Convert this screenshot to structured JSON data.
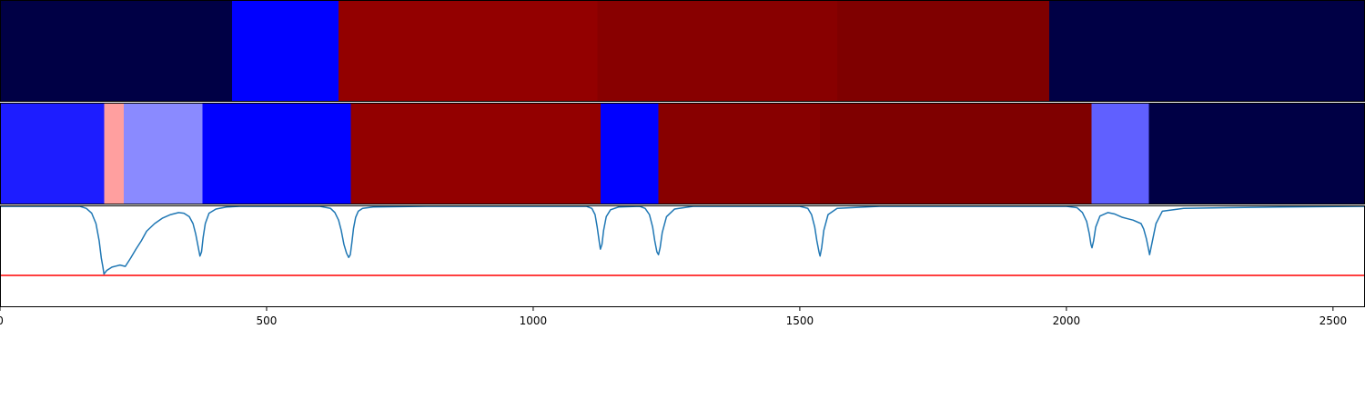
{
  "chart_data": [
    {
      "type": "heatmap",
      "xlim": [
        0,
        2560
      ],
      "segments": [
        {
          "x0": 0,
          "x1": 435,
          "color": "#000045"
        },
        {
          "x0": 435,
          "x1": 635,
          "color": "#0000ff"
        },
        {
          "x0": 635,
          "x1": 1120,
          "color": "#930000"
        },
        {
          "x0": 1120,
          "x1": 1570,
          "color": "#880000"
        },
        {
          "x0": 1570,
          "x1": 1968,
          "color": "#7f0000"
        },
        {
          "x0": 1968,
          "x1": 2560,
          "color": "#000045"
        }
      ]
    },
    {
      "type": "heatmap",
      "xlim": [
        0,
        2560
      ],
      "segments": [
        {
          "x0": 0,
          "x1": 195,
          "color": "#1d1dff"
        },
        {
          "x0": 195,
          "x1": 232,
          "color": "#ff9f9f"
        },
        {
          "x0": 232,
          "x1": 380,
          "color": "#8a8aff"
        },
        {
          "x0": 380,
          "x1": 658,
          "color": "#0000ff"
        },
        {
          "x0": 658,
          "x1": 1126,
          "color": "#930000"
        },
        {
          "x0": 1126,
          "x1": 1235,
          "color": "#0000ff"
        },
        {
          "x0": 1235,
          "x1": 1538,
          "color": "#880000"
        },
        {
          "x0": 1538,
          "x1": 2047,
          "color": "#7f0000"
        },
        {
          "x0": 2047,
          "x1": 2155,
          "color": "#6060ff"
        },
        {
          "x0": 2155,
          "x1": 2560,
          "color": "#000045"
        }
      ]
    },
    {
      "type": "line",
      "xlim": [
        0,
        2560
      ],
      "ylim": [
        -1,
        0
      ],
      "series": [
        {
          "color": "#1f77b4",
          "x": [
            0,
            150,
            162,
            172,
            180,
            186,
            190,
            193,
            195,
            200,
            210,
            225,
            235,
            245,
            255,
            265,
            275,
            290,
            305,
            320,
            335,
            345,
            355,
            362,
            367,
            372,
            375,
            378,
            381,
            385,
            392,
            405,
            425,
            450,
            600,
            620,
            628,
            635,
            640,
            645,
            650,
            654,
            657,
            660,
            663,
            667,
            672,
            680,
            700,
            800,
            1000,
            1100,
            1110,
            1116,
            1120,
            1124,
            1126,
            1129,
            1132,
            1137,
            1145,
            1160,
            1200,
            1210,
            1218,
            1224,
            1228,
            1232,
            1235,
            1238,
            1242,
            1250,
            1265,
            1300,
            1500,
            1515,
            1522,
            1528,
            1532,
            1536,
            1538,
            1541,
            1545,
            1553,
            1570,
            1650,
            2000,
            2020,
            2030,
            2038,
            2043,
            2046,
            2048,
            2051,
            2055,
            2063,
            2078,
            2090,
            2105,
            2115,
            2125,
            2140,
            2145,
            2150,
            2154,
            2156,
            2160,
            2168,
            2180,
            2220,
            2300,
            2400,
            2560
          ],
          "y": [
            0,
            0,
            -0.03,
            -0.1,
            -0.25,
            -0.5,
            -0.75,
            -0.88,
            -0.98,
            -0.93,
            -0.88,
            -0.85,
            -0.87,
            -0.75,
            -0.62,
            -0.5,
            -0.36,
            -0.25,
            -0.17,
            -0.12,
            -0.09,
            -0.1,
            -0.15,
            -0.25,
            -0.4,
            -0.6,
            -0.72,
            -0.66,
            -0.45,
            -0.25,
            -0.1,
            -0.04,
            -0.01,
            0,
            0,
            -0.03,
            -0.09,
            -0.2,
            -0.35,
            -0.55,
            -0.68,
            -0.74,
            -0.7,
            -0.52,
            -0.32,
            -0.16,
            -0.07,
            -0.03,
            -0.01,
            0,
            0,
            0,
            -0.03,
            -0.12,
            -0.3,
            -0.52,
            -0.62,
            -0.55,
            -0.35,
            -0.15,
            -0.05,
            -0.01,
            0,
            -0.03,
            -0.12,
            -0.3,
            -0.5,
            -0.66,
            -0.7,
            -0.6,
            -0.38,
            -0.15,
            -0.04,
            0,
            0,
            -0.03,
            -0.12,
            -0.3,
            -0.5,
            -0.66,
            -0.72,
            -0.6,
            -0.35,
            -0.12,
            -0.03,
            0,
            0,
            -0.02,
            -0.09,
            -0.22,
            -0.4,
            -0.55,
            -0.6,
            -0.5,
            -0.3,
            -0.14,
            -0.09,
            -0.11,
            -0.16,
            -0.18,
            -0.2,
            -0.25,
            -0.33,
            -0.47,
            -0.62,
            -0.7,
            -0.55,
            -0.25,
            -0.07,
            -0.03,
            -0.02,
            -0.01,
            0
          ]
        },
        {
          "color": "#ff0000",
          "x": [
            0,
            2560
          ],
          "y": [
            -1,
            -1
          ]
        }
      ]
    }
  ],
  "x_axis": {
    "ticks": [
      0,
      500,
      1000,
      1500,
      2000,
      2500
    ],
    "tick_labels": [
      "0",
      "500",
      "1000",
      "1500",
      "2000",
      "2500"
    ]
  }
}
